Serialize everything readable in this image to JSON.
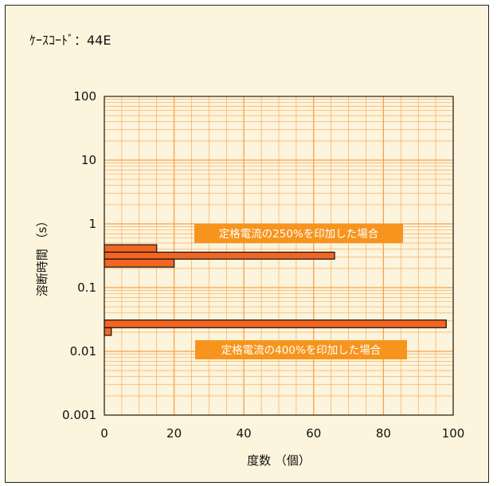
{
  "case_code": "ｹｰｽｺｰﾄﾞ：44E",
  "chart_data": {
    "type": "bar",
    "orientation": "horizontal",
    "xlabel": "度数 （個）",
    "ylabel": "溶断時間 （s）",
    "xlim": [
      0,
      100
    ],
    "x_ticks": [
      "0",
      "20",
      "40",
      "60",
      "80",
      "100"
    ],
    "y_scale": "log",
    "ylim": [
      0.001,
      100
    ],
    "y_ticks": [
      "0.001",
      "0.01",
      "0.1",
      "1",
      "10",
      "100"
    ],
    "grid": true,
    "colors": {
      "bar": "#f26522",
      "grid": "#f7a04a",
      "annotation_bg": "#f7941d",
      "background": "#fcf4dc"
    },
    "groups": [
      {
        "label": "定格電流の250%を印加した場合",
        "bars": [
          {
            "y_low": 0.36,
            "y_high": 0.47,
            "count": 15
          },
          {
            "y_low": 0.28,
            "y_high": 0.36,
            "count": 66
          },
          {
            "y_low": 0.21,
            "y_high": 0.28,
            "count": 20
          }
        ]
      },
      {
        "label": "定格電流の400%を印加した場合",
        "bars": [
          {
            "y_low": 0.0235,
            "y_high": 0.031,
            "count": 98
          },
          {
            "y_low": 0.0178,
            "y_high": 0.0235,
            "count": 2
          }
        ]
      }
    ]
  }
}
